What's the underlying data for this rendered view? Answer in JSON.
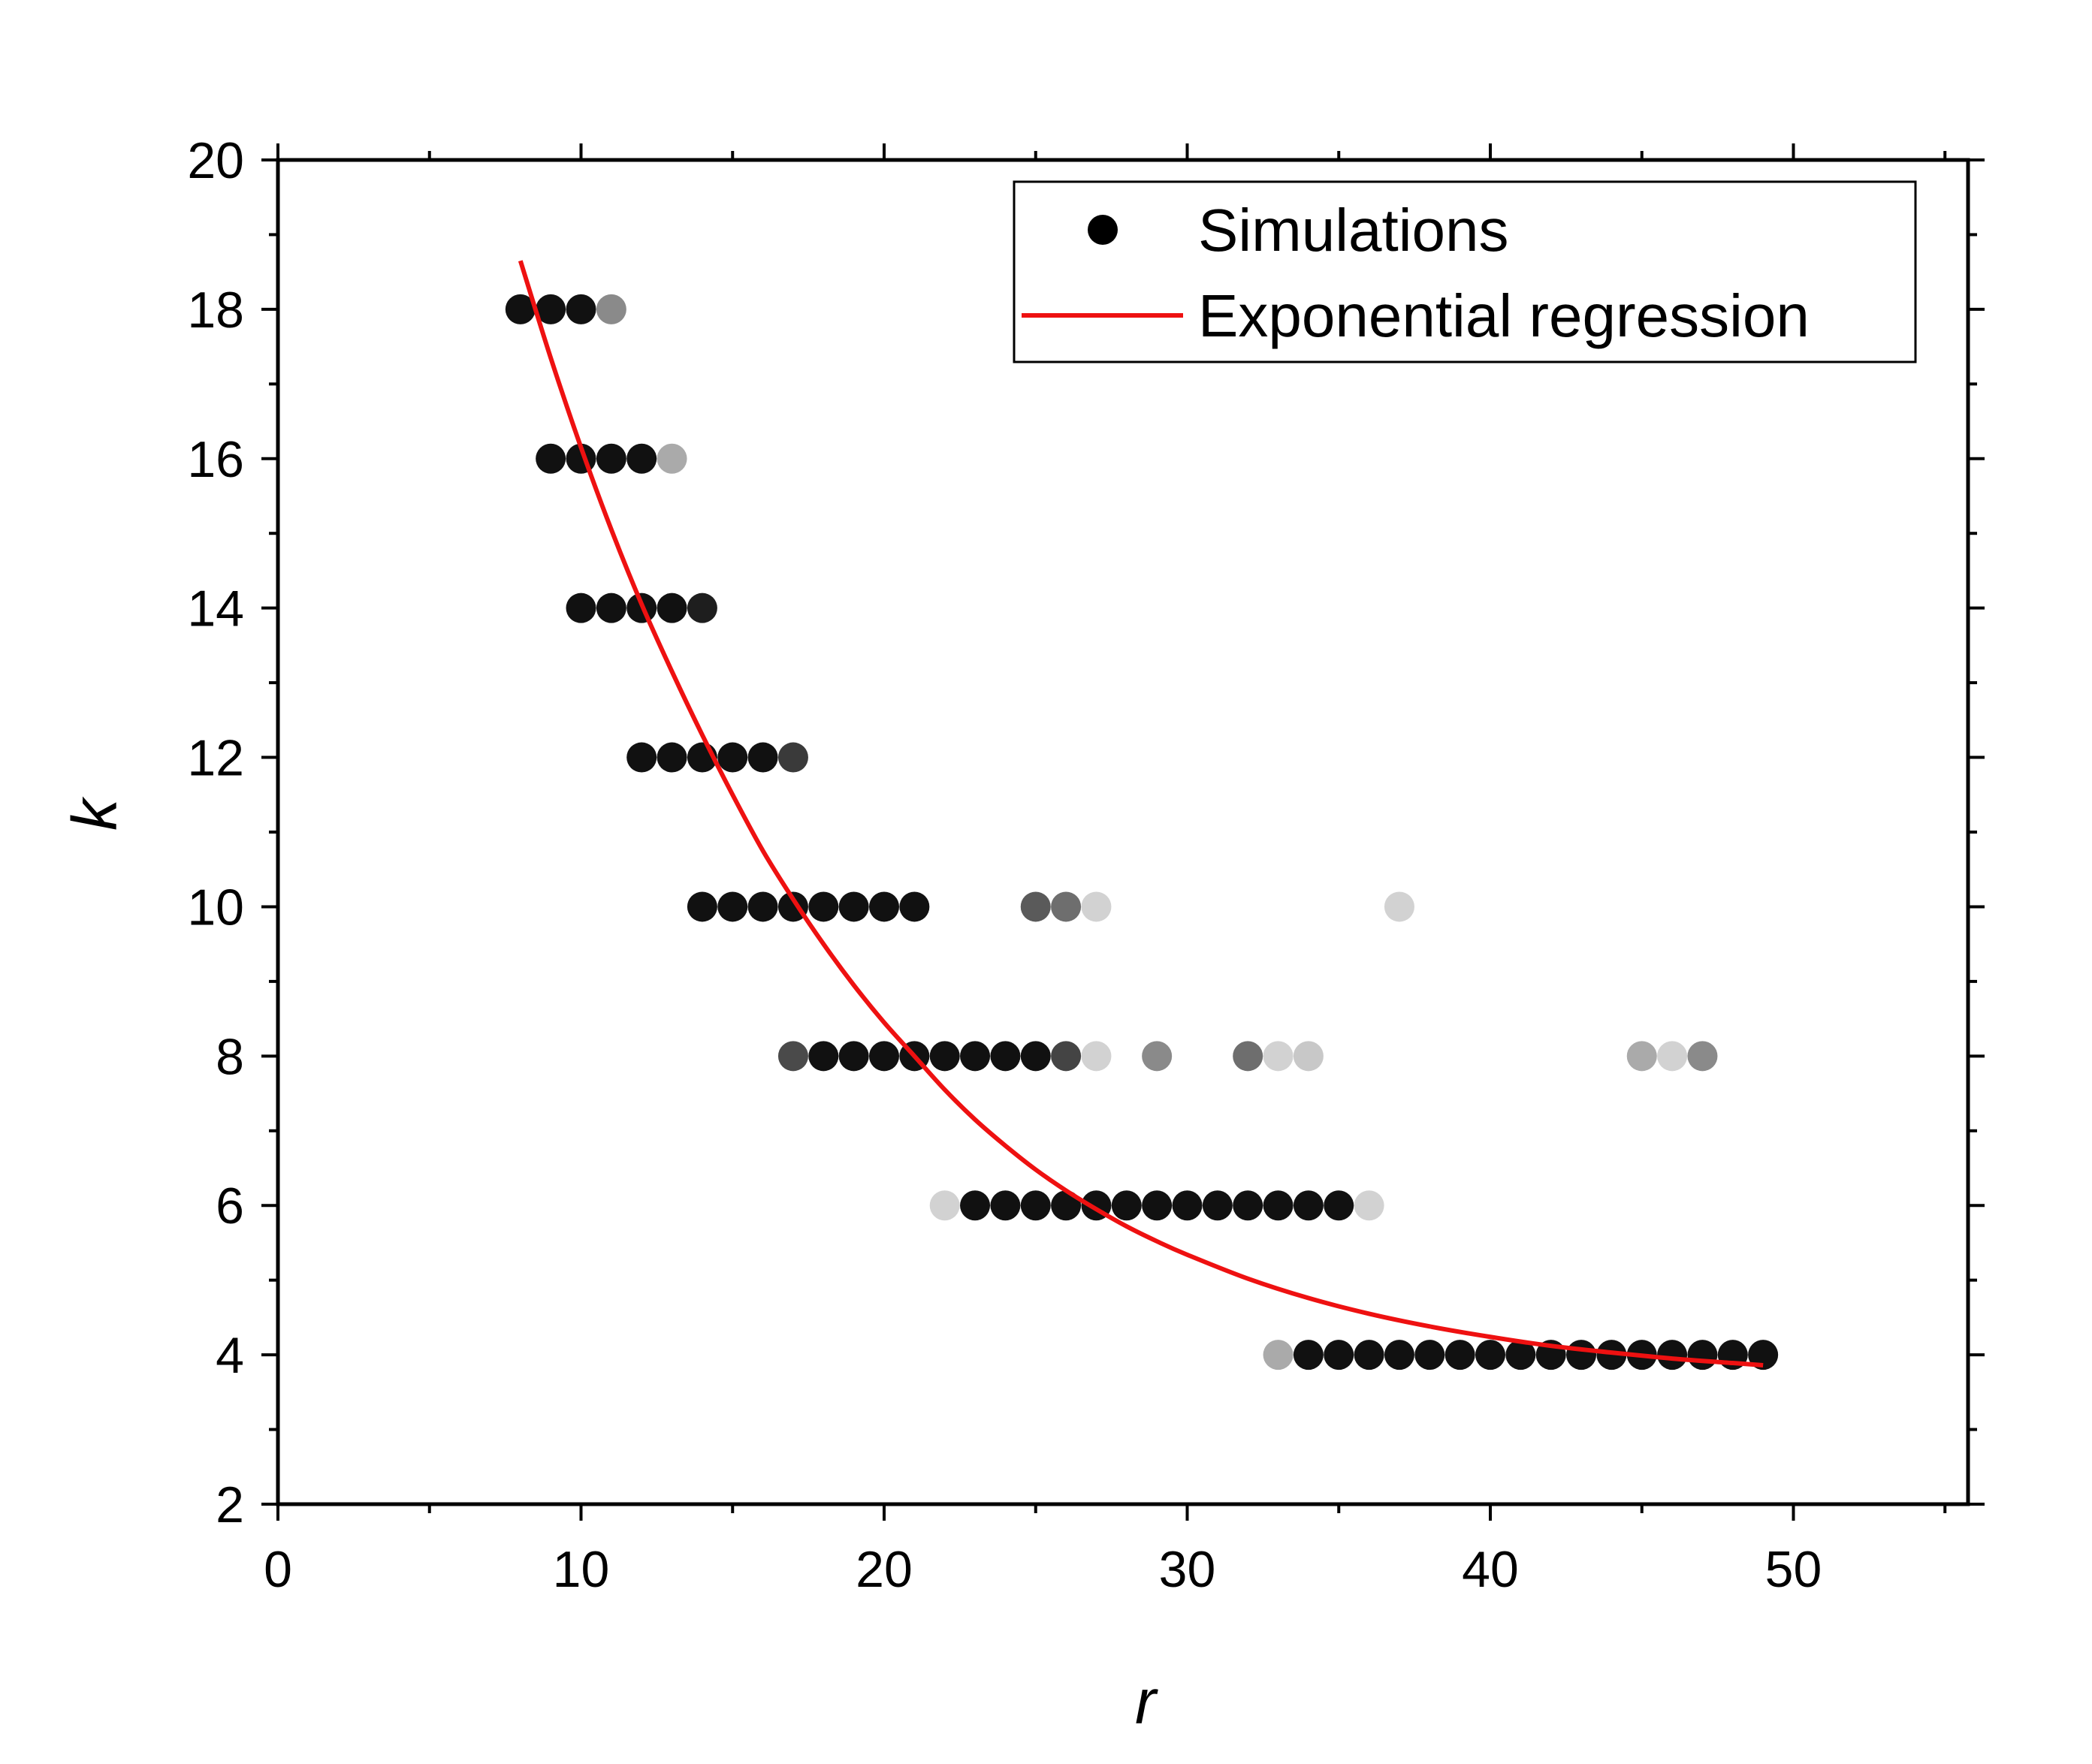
{
  "chart_data": {
    "type": "scatter",
    "title": "",
    "xlabel": "r",
    "ylabel": "k",
    "xlim": [
      0,
      56
    ],
    "ylim": [
      2,
      20
    ],
    "xticks": [
      0,
      10,
      20,
      30,
      40,
      50
    ],
    "yticks": [
      2,
      4,
      6,
      8,
      10,
      12,
      14,
      16,
      18,
      20
    ],
    "x_minor_step": 5,
    "y_minor_step": 1,
    "grid": false,
    "legend": {
      "position": "top-right",
      "entries": [
        {
          "label": "Simulations",
          "kind": "marker",
          "color": "#000000"
        },
        {
          "label": "Exponential regression",
          "kind": "line",
          "color": "#ee1111"
        }
      ]
    },
    "series": [
      {
        "name": "Simulations",
        "points": [
          {
            "x": 8,
            "y": 18,
            "shade": "#111111"
          },
          {
            "x": 9,
            "y": 18,
            "shade": "#111111"
          },
          {
            "x": 10,
            "y": 18,
            "shade": "#111111"
          },
          {
            "x": 11,
            "y": 18,
            "shade": "#8a8a8a"
          },
          {
            "x": 9,
            "y": 16,
            "shade": "#111111"
          },
          {
            "x": 10,
            "y": 16,
            "shade": "#111111"
          },
          {
            "x": 11,
            "y": 16,
            "shade": "#111111"
          },
          {
            "x": 12,
            "y": 16,
            "shade": "#111111"
          },
          {
            "x": 13,
            "y": 16,
            "shade": "#aaaaaa"
          },
          {
            "x": 10,
            "y": 14,
            "shade": "#111111"
          },
          {
            "x": 11,
            "y": 14,
            "shade": "#111111"
          },
          {
            "x": 12,
            "y": 14,
            "shade": "#111111"
          },
          {
            "x": 13,
            "y": 14,
            "shade": "#111111"
          },
          {
            "x": 14,
            "y": 14,
            "shade": "#1e1e1e"
          },
          {
            "x": 12,
            "y": 12,
            "shade": "#111111"
          },
          {
            "x": 13,
            "y": 12,
            "shade": "#111111"
          },
          {
            "x": 14,
            "y": 12,
            "shade": "#111111"
          },
          {
            "x": 15,
            "y": 12,
            "shade": "#111111"
          },
          {
            "x": 16,
            "y": 12,
            "shade": "#111111"
          },
          {
            "x": 17,
            "y": 12,
            "shade": "#3a3a3a"
          },
          {
            "x": 14,
            "y": 10,
            "shade": "#111111"
          },
          {
            "x": 15,
            "y": 10,
            "shade": "#111111"
          },
          {
            "x": 16,
            "y": 10,
            "shade": "#111111"
          },
          {
            "x": 17,
            "y": 10,
            "shade": "#111111"
          },
          {
            "x": 18,
            "y": 10,
            "shade": "#111111"
          },
          {
            "x": 19,
            "y": 10,
            "shade": "#111111"
          },
          {
            "x": 20,
            "y": 10,
            "shade": "#111111"
          },
          {
            "x": 21,
            "y": 10,
            "shade": "#111111"
          },
          {
            "x": 25,
            "y": 10,
            "shade": "#5a5a5a"
          },
          {
            "x": 26,
            "y": 10,
            "shade": "#6e6e6e"
          },
          {
            "x": 27,
            "y": 10,
            "shade": "#d2d2d2"
          },
          {
            "x": 37,
            "y": 10,
            "shade": "#d2d2d2"
          },
          {
            "x": 17,
            "y": 8,
            "shade": "#4a4a4a"
          },
          {
            "x": 18,
            "y": 8,
            "shade": "#111111"
          },
          {
            "x": 19,
            "y": 8,
            "shade": "#111111"
          },
          {
            "x": 20,
            "y": 8,
            "shade": "#111111"
          },
          {
            "x": 21,
            "y": 8,
            "shade": "#111111"
          },
          {
            "x": 22,
            "y": 8,
            "shade": "#111111"
          },
          {
            "x": 23,
            "y": 8,
            "shade": "#111111"
          },
          {
            "x": 24,
            "y": 8,
            "shade": "#111111"
          },
          {
            "x": 25,
            "y": 8,
            "shade": "#111111"
          },
          {
            "x": 26,
            "y": 8,
            "shade": "#444444"
          },
          {
            "x": 27,
            "y": 8,
            "shade": "#d2d2d2"
          },
          {
            "x": 29,
            "y": 8,
            "shade": "#8a8a8a"
          },
          {
            "x": 32,
            "y": 8,
            "shade": "#6e6e6e"
          },
          {
            "x": 33,
            "y": 8,
            "shade": "#d2d2d2"
          },
          {
            "x": 34,
            "y": 8,
            "shade": "#c8c8c8"
          },
          {
            "x": 45,
            "y": 8,
            "shade": "#aaaaaa"
          },
          {
            "x": 46,
            "y": 8,
            "shade": "#d2d2d2"
          },
          {
            "x": 47,
            "y": 8,
            "shade": "#8a8a8a"
          },
          {
            "x": 22,
            "y": 6,
            "shade": "#d2d2d2"
          },
          {
            "x": 23,
            "y": 6,
            "shade": "#111111"
          },
          {
            "x": 24,
            "y": 6,
            "shade": "#111111"
          },
          {
            "x": 25,
            "y": 6,
            "shade": "#111111"
          },
          {
            "x": 26,
            "y": 6,
            "shade": "#111111"
          },
          {
            "x": 27,
            "y": 6,
            "shade": "#111111"
          },
          {
            "x": 28,
            "y": 6,
            "shade": "#111111"
          },
          {
            "x": 29,
            "y": 6,
            "shade": "#111111"
          },
          {
            "x": 30,
            "y": 6,
            "shade": "#111111"
          },
          {
            "x": 31,
            "y": 6,
            "shade": "#111111"
          },
          {
            "x": 32,
            "y": 6,
            "shade": "#111111"
          },
          {
            "x": 33,
            "y": 6,
            "shade": "#111111"
          },
          {
            "x": 34,
            "y": 6,
            "shade": "#111111"
          },
          {
            "x": 35,
            "y": 6,
            "shade": "#111111"
          },
          {
            "x": 36,
            "y": 6,
            "shade": "#d2d2d2"
          },
          {
            "x": 33,
            "y": 4,
            "shade": "#aaaaaa"
          },
          {
            "x": 34,
            "y": 4,
            "shade": "#111111"
          },
          {
            "x": 35,
            "y": 4,
            "shade": "#111111"
          },
          {
            "x": 36,
            "y": 4,
            "shade": "#111111"
          },
          {
            "x": 37,
            "y": 4,
            "shade": "#111111"
          },
          {
            "x": 38,
            "y": 4,
            "shade": "#111111"
          },
          {
            "x": 39,
            "y": 4,
            "shade": "#111111"
          },
          {
            "x": 40,
            "y": 4,
            "shade": "#111111"
          },
          {
            "x": 41,
            "y": 4,
            "shade": "#111111"
          },
          {
            "x": 42,
            "y": 4,
            "shade": "#111111"
          },
          {
            "x": 43,
            "y": 4,
            "shade": "#111111"
          },
          {
            "x": 44,
            "y": 4,
            "shade": "#111111"
          },
          {
            "x": 45,
            "y": 4,
            "shade": "#111111"
          },
          {
            "x": 46,
            "y": 4,
            "shade": "#111111"
          },
          {
            "x": 47,
            "y": 4,
            "shade": "#111111"
          },
          {
            "x": 48,
            "y": 4,
            "shade": "#111111"
          },
          {
            "x": 49,
            "y": 4,
            "shade": "#111111"
          }
        ]
      },
      {
        "name": "Exponential regression",
        "type": "line",
        "color": "#ee1111",
        "points": [
          {
            "x": 8,
            "y": 18.65
          },
          {
            "x": 9,
            "y": 17.35
          },
          {
            "x": 10,
            "y": 16.15
          },
          {
            "x": 11,
            "y": 15.05
          },
          {
            "x": 12,
            "y": 14.05
          },
          {
            "x": 13,
            "y": 13.15
          },
          {
            "x": 14,
            "y": 12.3
          },
          {
            "x": 15,
            "y": 11.5
          },
          {
            "x": 16,
            "y": 10.75
          },
          {
            "x": 17,
            "y": 10.1
          },
          {
            "x": 18,
            "y": 9.5
          },
          {
            "x": 19,
            "y": 8.95
          },
          {
            "x": 20,
            "y": 8.45
          },
          {
            "x": 21,
            "y": 8.0
          },
          {
            "x": 22,
            "y": 7.55
          },
          {
            "x": 23,
            "y": 7.15
          },
          {
            "x": 24,
            "y": 6.8
          },
          {
            "x": 25,
            "y": 6.48
          },
          {
            "x": 26,
            "y": 6.2
          },
          {
            "x": 27,
            "y": 5.95
          },
          {
            "x": 28,
            "y": 5.72
          },
          {
            "x": 29,
            "y": 5.52
          },
          {
            "x": 30,
            "y": 5.34
          },
          {
            "x": 32,
            "y": 5.02
          },
          {
            "x": 34,
            "y": 4.76
          },
          {
            "x": 36,
            "y": 4.55
          },
          {
            "x": 38,
            "y": 4.38
          },
          {
            "x": 40,
            "y": 4.24
          },
          {
            "x": 42,
            "y": 4.12
          },
          {
            "x": 44,
            "y": 4.03
          },
          {
            "x": 46,
            "y": 3.95
          },
          {
            "x": 48,
            "y": 3.89
          },
          {
            "x": 49,
            "y": 3.86
          }
        ]
      }
    ]
  }
}
